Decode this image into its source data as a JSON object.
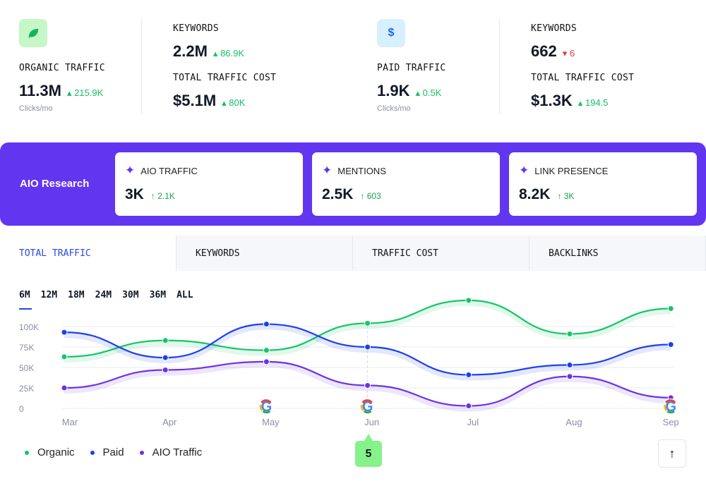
{
  "summary": [
    {
      "icon": "leaf-icon",
      "icon_bg": "#c6f7c6",
      "icon_color": "#16b35a",
      "label": "ORGANIC TRAFFIC",
      "value": "11.3M",
      "delta": "215.9K",
      "delta_dir": "up",
      "sub": "Clicks/mo",
      "keywords": {
        "label": "KEYWORDS",
        "value": "2.2M",
        "delta": "86.9K",
        "delta_dir": "up"
      },
      "cost": {
        "label": "TOTAL TRAFFIC COST",
        "value": "$5.1M",
        "delta": "80K",
        "delta_dir": "up"
      }
    },
    {
      "icon": "dollar-icon",
      "icon_bg": "#d7f0ff",
      "icon_color": "#2563eb",
      "icon_glyph": "$",
      "label": "PAID TRAFFIC",
      "value": "1.9K",
      "delta": "0.5K",
      "delta_dir": "up",
      "sub": "Clicks/mo",
      "keywords": {
        "label": "KEYWORDS",
        "value": "662",
        "delta": "6",
        "delta_dir": "down"
      },
      "cost": {
        "label": "TOTAL TRAFFIC COST",
        "value": "$1.3K",
        "delta": "194.5",
        "delta_dir": "up"
      }
    }
  ],
  "aio": {
    "title": "AIO Research",
    "accent": "#6236f0",
    "cards": [
      {
        "label": "AIO TRAFFIC",
        "value": "3K",
        "delta": "2.1K"
      },
      {
        "label": "MENTIONS",
        "value": "2.5K",
        "delta": "603"
      },
      {
        "label": "LINK PRESENCE",
        "value": "8.2K",
        "delta": "3K"
      }
    ]
  },
  "tabs": [
    {
      "label": "TOTAL TRAFFIC",
      "active": true
    },
    {
      "label": "KEYWORDS"
    },
    {
      "label": "TRAFFIC COST"
    },
    {
      "label": "BACKLINKS"
    }
  ],
  "ranges": [
    "6M",
    "12M",
    "18M",
    "24M",
    "30M",
    "36M",
    "ALL"
  ],
  "selected_range": "6M",
  "chart_data": {
    "type": "line",
    "categories": [
      "Mar",
      "Apr",
      "May",
      "Jun",
      "Jul",
      "Aug",
      "Sep"
    ],
    "yticks": [
      "0",
      "25K",
      "50K",
      "75K",
      "100K"
    ],
    "ylim": [
      0,
      100000
    ],
    "grid": true,
    "legend_placement": "bottom-left",
    "series": [
      {
        "name": "Organic",
        "color": "#12c764",
        "values": [
          63000,
          83000,
          71000,
          104000,
          132000,
          91000,
          122000
        ]
      },
      {
        "name": "Paid",
        "color": "#1d3ff0",
        "values": [
          93000,
          62000,
          103000,
          75000,
          41000,
          53000,
          78000
        ]
      },
      {
        "name": "AIO Traffic",
        "color": "#6b32e6",
        "values": [
          25000,
          47000,
          57000,
          28000,
          3000,
          39000,
          13000
        ]
      }
    ],
    "google_update_markers": [
      "May",
      "Jun",
      "Sep"
    ],
    "highlight": {
      "category": "Jun",
      "label": "5",
      "color": "#86f28a"
    }
  },
  "scroll_top_icon": "arrow-up-icon"
}
